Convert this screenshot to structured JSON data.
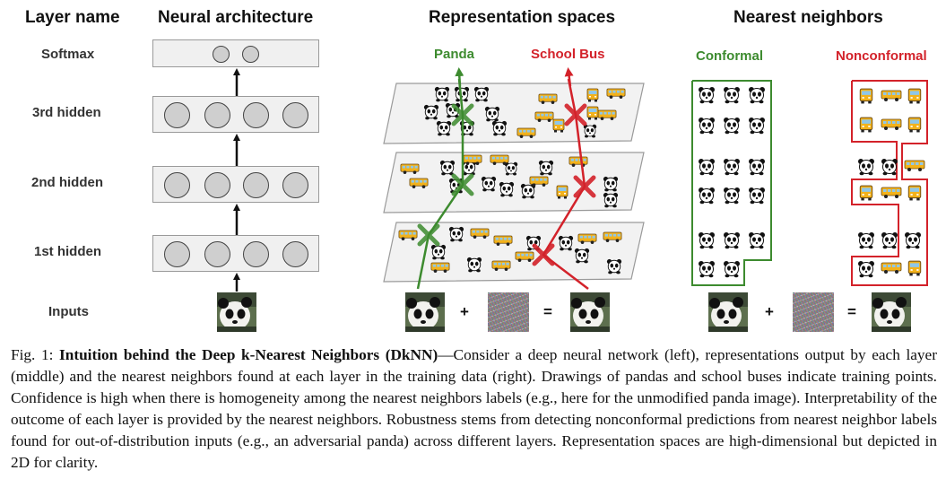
{
  "headers": {
    "layer_name": "Layer name",
    "neural_architecture": "Neural architecture",
    "representation_spaces": "Representation spaces",
    "nearest_neighbors": "Nearest neighbors"
  },
  "layers": {
    "softmax": "Softmax",
    "hidden3": "3rd hidden",
    "hidden2": "2nd hidden",
    "hidden1": "1st hidden",
    "inputs": "Inputs"
  },
  "class_labels": {
    "panda": "Panda",
    "school_bus": "School Bus"
  },
  "neighbor_labels": {
    "conformal": "Conformal",
    "nonconformal": "Nonconformal"
  },
  "operators": {
    "plus": "+",
    "equals": "="
  },
  "colors": {
    "panda_green": "#3d8b2f",
    "bus_red": "#d3222a"
  },
  "caption": {
    "fig_label": "Fig. 1: ",
    "title": "Intuition behind the Deep k-Nearest Neighbors (DkNN)",
    "body": "—Consider a deep neural network (left), representations output by each layer (middle) and the nearest neighbors found at each layer in the training data (right). Drawings of pandas and school buses indicate training points. Confidence is high when there is homogeneity among the nearest neighbors labels (e.g., here for the unmodified panda image). Interpretability of the outcome of each layer is provided by the nearest neighbors. Robustness stems from detecting nonconformal predictions from nearest neighbor labels found for out-of-distribution inputs (e.g., an adversarial panda) across different layers. Representation spaces are high-dimensional but depicted in 2D for clarity."
  }
}
